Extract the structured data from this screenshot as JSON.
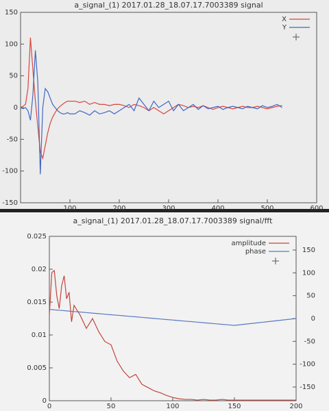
{
  "chart_data": [
    {
      "type": "line",
      "title": "a_signal_(1) 2017.01.28_18.07.17.7003389 signal",
      "x": [
        0,
        5,
        10,
        15,
        20,
        25,
        30,
        35,
        40,
        45,
        50,
        55,
        60,
        65,
        70,
        75,
        80,
        85,
        90,
        95,
        100,
        110,
        120,
        130,
        140,
        150,
        160,
        170,
        180,
        190,
        200,
        210,
        220,
        230,
        240,
        250,
        260,
        270,
        280,
        290,
        300,
        310,
        320,
        330,
        340,
        350,
        360,
        370,
        380,
        390,
        400,
        410,
        420,
        430,
        440,
        450,
        460,
        470,
        480,
        490,
        500,
        510,
        520,
        530
      ],
      "series": [
        {
          "name": "X",
          "color": "#d9453a",
          "values": [
            0,
            2,
            5,
            30,
            110,
            60,
            10,
            -30,
            -70,
            -80,
            -60,
            -40,
            -25,
            -15,
            -8,
            -2,
            2,
            5,
            8,
            10,
            10,
            10,
            8,
            10,
            5,
            8,
            5,
            5,
            3,
            5,
            5,
            3,
            0,
            5,
            3,
            0,
            -5,
            0,
            -5,
            -10,
            -5,
            0,
            5,
            3,
            0,
            2,
            0,
            3,
            0,
            -3,
            0,
            2,
            0,
            -2,
            0,
            2,
            0,
            0,
            2,
            0,
            -2,
            0,
            2,
            3
          ]
        },
        {
          "name": "Y",
          "color": "#3f66c4",
          "values": [
            0,
            -2,
            0,
            -5,
            -20,
            20,
            90,
            40,
            -105,
            0,
            30,
            25,
            15,
            5,
            0,
            -5,
            -8,
            -10,
            -10,
            -8,
            -10,
            -10,
            -5,
            -8,
            -12,
            -5,
            -10,
            -8,
            -5,
            -10,
            -5,
            0,
            5,
            -5,
            15,
            5,
            -5,
            10,
            0,
            5,
            10,
            -5,
            5,
            -5,
            0,
            5,
            -3,
            3,
            -2,
            0,
            2,
            -3,
            0,
            2,
            0,
            -2,
            2,
            0,
            -2,
            3,
            0,
            2,
            5,
            0
          ]
        }
      ],
      "xlim": [
        0,
        600
      ],
      "xticks": [
        100,
        200,
        300,
        400,
        500,
        600
      ],
      "ylim": [
        -150,
        150
      ],
      "yticks": [
        -150,
        -100,
        -50,
        0,
        50,
        100,
        150
      ],
      "legend": "top-right"
    },
    {
      "type": "line",
      "title": "a_signal_(1) 2017.01.28_18.07.17.7003389 signal/fft",
      "x": [
        0,
        2,
        4,
        6,
        8,
        10,
        12,
        14,
        16,
        18,
        20,
        25,
        30,
        35,
        40,
        45,
        50,
        55,
        60,
        65,
        70,
        75,
        80,
        85,
        90,
        95,
        100,
        105,
        110,
        115,
        120,
        125,
        130,
        135,
        140,
        145,
        150,
        155,
        160,
        165,
        170,
        175,
        180,
        185,
        190,
        195,
        200
      ],
      "series": [
        {
          "name": "amplitude",
          "color": "#c2453a",
          "values": [
            0.013,
            0.0195,
            0.0198,
            0.016,
            0.014,
            0.0175,
            0.019,
            0.0155,
            0.0165,
            0.012,
            0.0145,
            0.013,
            0.011,
            0.0125,
            0.0105,
            0.009,
            0.0085,
            0.006,
            0.0045,
            0.0035,
            0.004,
            0.0025,
            0.002,
            0.0015,
            0.0012,
            0.0008,
            0.0005,
            0.0003,
            0.0002,
            0.0002,
            0.0001,
            0.0002,
            0.0001,
            0.0001,
            0.0002,
            0.0001,
            0.0001,
            0.0001,
            0.0001,
            0.0001,
            0.0001,
            0.0001,
            0.0001,
            0.0001,
            0.0001,
            0.0001,
            0.0001
          ]
        },
        {
          "name": "phase",
          "color": "#5a78c0",
          "axis": "y2",
          "values": [
            20,
            19.5,
            19,
            18.6,
            18.1,
            17.7,
            17.2,
            16.7,
            16.3,
            15.8,
            15.3,
            14.2,
            13,
            11.8,
            10.7,
            9.5,
            8.3,
            7.2,
            6,
            4.8,
            3.7,
            2.5,
            1.3,
            0.2,
            -1,
            -2.2,
            -3.3,
            -4.5,
            -5.7,
            -6.8,
            -8,
            -9.2,
            -10.3,
            -11.5,
            -12.7,
            -13.8,
            -15,
            -13.5,
            -12,
            -10.5,
            -9,
            -7.5,
            -6,
            -4.5,
            -3,
            -1.5,
            0
          ]
        }
      ],
      "xlim": [
        0,
        200
      ],
      "xticks": [
        0,
        50,
        100,
        150,
        200
      ],
      "ylim": [
        0,
        0.025
      ],
      "yticks": [
        0,
        0.005,
        0.01,
        0.015,
        0.02,
        0.025
      ],
      "y2lim": [
        -180,
        180
      ],
      "y2ticks": [
        -150,
        -100,
        -50,
        0,
        50,
        100,
        150
      ],
      "legend": "top-right"
    }
  ]
}
